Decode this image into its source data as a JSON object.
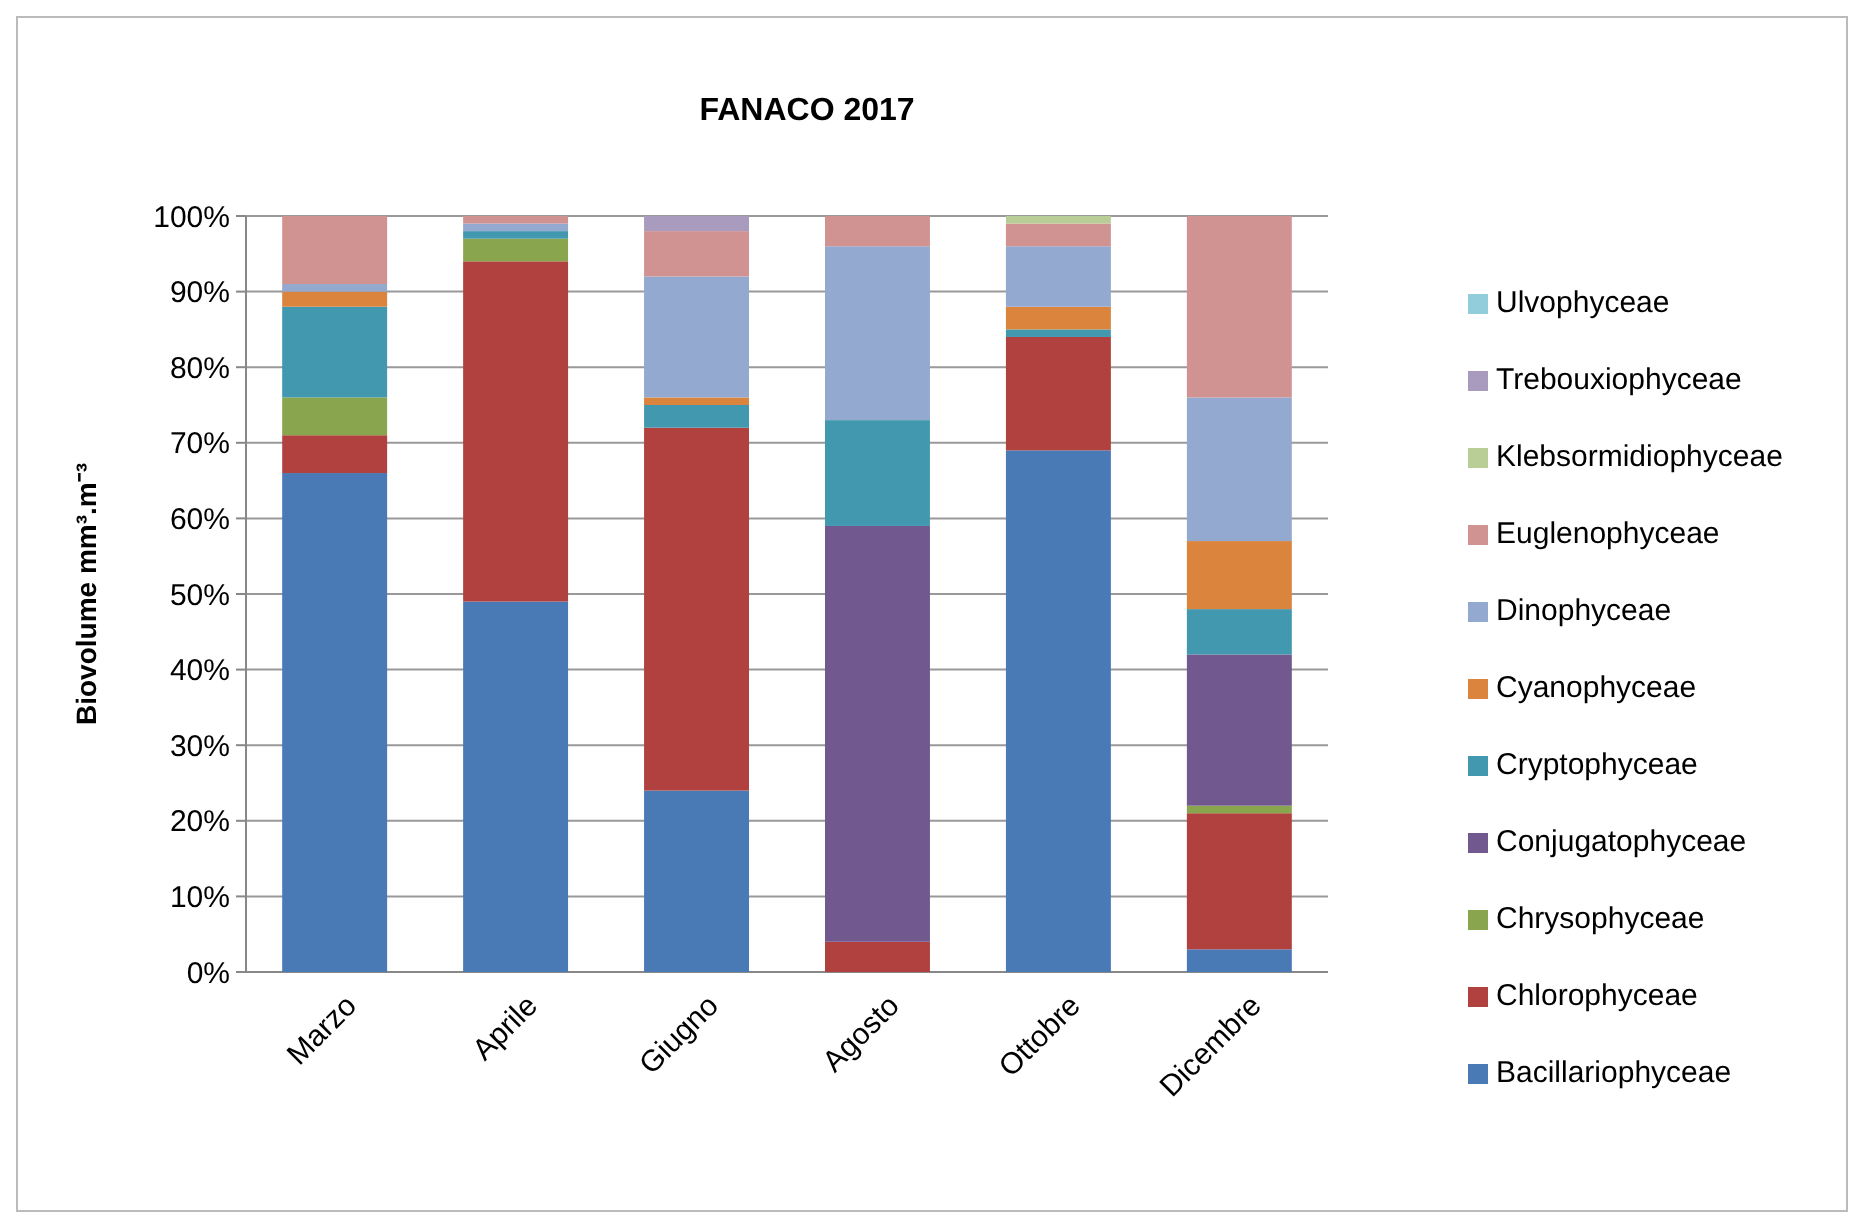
{
  "chart_data": {
    "type": "bar",
    "title": "FANACO 2017",
    "ylabel": "Biovolume mm³.m⁻³",
    "stacked": true,
    "categories": [
      "Marzo",
      "Aprile",
      "Giugno",
      "Agosto",
      "Ottobre",
      "Dicembre"
    ],
    "series": [
      {
        "name": "Bacillariophyceae",
        "color": "#4a7ab5",
        "values": [
          66,
          49,
          24,
          0,
          69,
          3
        ]
      },
      {
        "name": "Chlorophyceae",
        "color": "#b0413e",
        "values": [
          5,
          45,
          48,
          4,
          15,
          18
        ]
      },
      {
        "name": "Chrysophyceae",
        "color": "#89a54e",
        "values": [
          5,
          3,
          0,
          0,
          0,
          1
        ]
      },
      {
        "name": "Conjugatophyceae",
        "color": "#71588f",
        "values": [
          0,
          0,
          0,
          55,
          0,
          20
        ]
      },
      {
        "name": "Cryptophyceae",
        "color": "#4198af",
        "values": [
          12,
          1,
          3,
          14,
          1,
          6
        ]
      },
      {
        "name": "Cyanophyceae",
        "color": "#db843d",
        "values": [
          2,
          0,
          1,
          0,
          3,
          9
        ]
      },
      {
        "name": "Dinophyceae",
        "color": "#93a9cf",
        "values": [
          1,
          1,
          16,
          23,
          8,
          19
        ]
      },
      {
        "name": "Euglenophyceae",
        "color": "#d19392",
        "values": [
          9,
          1,
          6,
          4,
          3,
          24
        ]
      },
      {
        "name": "Klebsormidiophyceae",
        "color": "#b9cd96",
        "values": [
          0,
          0,
          0,
          0,
          1,
          0
        ]
      },
      {
        "name": "Trebouxiophyceae",
        "color": "#a99bbd",
        "values": [
          0,
          0,
          2,
          0,
          0,
          0
        ]
      },
      {
        "name": "Ulvophyceae",
        "color": "#92cddc",
        "values": [
          0,
          0,
          0,
          0,
          0,
          0
        ]
      }
    ],
    "ylim": [
      0,
      100
    ],
    "yticks": [
      {
        "value": 0,
        "label": "0%"
      },
      {
        "value": 10,
        "label": "10%"
      },
      {
        "value": 20,
        "label": "20%"
      },
      {
        "value": 30,
        "label": "30%"
      },
      {
        "value": 40,
        "label": "40%"
      },
      {
        "value": 50,
        "label": "50%"
      },
      {
        "value": 60,
        "label": "60%"
      },
      {
        "value": 70,
        "label": "70%"
      },
      {
        "value": 80,
        "label": "80%"
      },
      {
        "value": 90,
        "label": "90%"
      },
      {
        "value": 100,
        "label": "100%"
      }
    ],
    "grid": "y",
    "legend": "right"
  }
}
